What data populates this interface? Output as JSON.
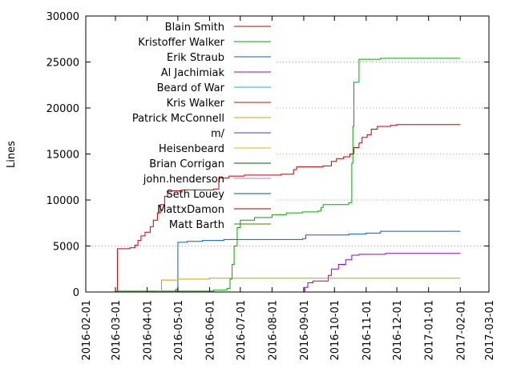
{
  "chart_data": {
    "type": "line",
    "title": "",
    "xlabel": "",
    "ylabel": "Lines",
    "ylim": [
      0,
      30000
    ],
    "yticks": [
      0,
      5000,
      10000,
      15000,
      20000,
      25000,
      30000
    ],
    "xlim": [
      "2016-02-01",
      "2017-03-01"
    ],
    "xticks": [
      "2016-02-01",
      "2016-03-01",
      "2016-04-01",
      "2016-05-01",
      "2016-06-01",
      "2016-07-01",
      "2016-08-01",
      "2016-09-01",
      "2016-10-01",
      "2016-11-01",
      "2016-12-01",
      "2017-01-01",
      "2017-02-01",
      "2017-03-01"
    ],
    "grid": "horizontal dotted",
    "legend_position": "top-left",
    "series": [
      {
        "name": "Blain Smith",
        "color": "#c00000",
        "step": true,
        "points": [
          [
            "2016-03-02",
            0
          ],
          [
            "2016-03-03",
            4700
          ],
          [
            "2016-03-15",
            4800
          ],
          [
            "2016-03-20",
            5100
          ],
          [
            "2016-03-23",
            5600
          ],
          [
            "2016-03-26",
            6100
          ],
          [
            "2016-03-30",
            6500
          ],
          [
            "2016-04-04",
            7100
          ],
          [
            "2016-04-07",
            7800
          ],
          [
            "2016-04-11",
            8600
          ],
          [
            "2016-04-14",
            9500
          ],
          [
            "2016-04-18",
            10400
          ],
          [
            "2016-04-21",
            10900
          ],
          [
            "2016-04-25",
            11000
          ],
          [
            "2016-05-05",
            11100
          ],
          [
            "2016-05-15",
            11100
          ],
          [
            "2016-06-05",
            11200
          ],
          [
            "2016-06-10",
            12400
          ],
          [
            "2016-06-20",
            12600
          ],
          [
            "2016-07-05",
            12700
          ],
          [
            "2016-08-10",
            12800
          ],
          [
            "2016-08-22",
            13300
          ],
          [
            "2016-08-25",
            13600
          ],
          [
            "2016-09-20",
            13700
          ],
          [
            "2016-09-28",
            14200
          ],
          [
            "2016-10-03",
            14500
          ],
          [
            "2016-10-10",
            14700
          ],
          [
            "2016-10-16",
            15000
          ],
          [
            "2016-10-20",
            15700
          ],
          [
            "2016-10-25",
            16200
          ],
          [
            "2016-10-28",
            16800
          ],
          [
            "2016-11-02",
            17100
          ],
          [
            "2016-11-06",
            17700
          ],
          [
            "2016-11-12",
            18000
          ],
          [
            "2016-11-25",
            18100
          ],
          [
            "2016-12-01",
            18200
          ],
          [
            "2017-02-01",
            18200
          ]
        ]
      },
      {
        "name": "Kristoffer Walker",
        "color": "#00aa00",
        "step": true,
        "points": [
          [
            "2016-03-01",
            0
          ],
          [
            "2016-03-02",
            100
          ],
          [
            "2016-06-05",
            200
          ],
          [
            "2016-06-18",
            400
          ],
          [
            "2016-06-21",
            1400
          ],
          [
            "2016-06-23",
            3000
          ],
          [
            "2016-06-25",
            5000
          ],
          [
            "2016-06-28",
            7000
          ],
          [
            "2016-07-01",
            7800
          ],
          [
            "2016-07-15",
            8100
          ],
          [
            "2016-08-01",
            8400
          ],
          [
            "2016-08-15",
            8600
          ],
          [
            "2016-08-31",
            8700
          ],
          [
            "2016-09-15",
            8800
          ],
          [
            "2016-09-18",
            9200
          ],
          [
            "2016-09-20",
            9500
          ],
          [
            "2016-10-15",
            9700
          ],
          [
            "2016-10-18",
            14000
          ],
          [
            "2016-10-19",
            18000
          ],
          [
            "2016-10-20",
            22800
          ],
          [
            "2016-10-25",
            25300
          ],
          [
            "2016-11-15",
            25400
          ],
          [
            "2017-02-01",
            25400
          ]
        ]
      },
      {
        "name": "Erik Straub",
        "color": "#0060c0",
        "step": true,
        "points": [
          [
            "2016-04-28",
            0
          ],
          [
            "2016-04-29",
            300
          ],
          [
            "2016-05-01",
            5400
          ],
          [
            "2016-05-10",
            5500
          ],
          [
            "2016-05-25",
            5600
          ],
          [
            "2016-06-15",
            5700
          ],
          [
            "2016-08-31",
            5800
          ],
          [
            "2016-09-03",
            6200
          ],
          [
            "2016-10-15",
            6300
          ],
          [
            "2016-11-01",
            6400
          ],
          [
            "2016-11-15",
            6600
          ],
          [
            "2017-02-01",
            6600
          ]
        ]
      },
      {
        "name": "Al Jachimiak",
        "color": "#9400d3",
        "step": true,
        "points": [
          [
            "2016-09-01",
            0
          ],
          [
            "2016-09-02",
            500
          ],
          [
            "2016-09-05",
            1000
          ],
          [
            "2016-09-10",
            1200
          ],
          [
            "2016-09-25",
            1800
          ],
          [
            "2016-09-28",
            2500
          ],
          [
            "2016-10-05",
            3000
          ],
          [
            "2016-10-12",
            3500
          ],
          [
            "2016-10-18",
            4000
          ],
          [
            "2016-10-25",
            4100
          ],
          [
            "2016-11-20",
            4200
          ],
          [
            "2017-02-01",
            4200
          ]
        ]
      },
      {
        "name": "Beard of War",
        "color": "#00c0c0",
        "step": true,
        "points": [
          [
            "2016-03-01",
            0
          ],
          [
            "2017-02-01",
            0
          ]
        ]
      },
      {
        "name": "Kris Walker",
        "color": "#a02000",
        "step": true,
        "points": [
          [
            "2016-03-01",
            0
          ],
          [
            "2017-02-01",
            0
          ]
        ]
      },
      {
        "name": "Patrick McConnell",
        "color": "#c8a000",
        "step": true,
        "points": [
          [
            "2016-03-01",
            0
          ],
          [
            "2016-04-12",
            100
          ],
          [
            "2016-04-15",
            1300
          ],
          [
            "2016-05-01",
            1400
          ],
          [
            "2016-06-01",
            1500
          ],
          [
            "2017-02-01",
            1500
          ]
        ]
      },
      {
        "name": "m/",
        "color": "#4040c0",
        "step": true,
        "points": [
          [
            "2016-03-01",
            0
          ],
          [
            "2017-02-01",
            0
          ]
        ]
      },
      {
        "name": "Heisenbeard",
        "color": "#d0c000",
        "step": true,
        "points": [
          [
            "2016-03-01",
            0
          ],
          [
            "2017-02-01",
            0
          ]
        ]
      },
      {
        "name": "Brian Corrigan",
        "color": "#006000",
        "step": true,
        "points": [
          [
            "2016-03-01",
            0
          ],
          [
            "2017-02-01",
            0
          ]
        ]
      },
      {
        "name": "john.henderson",
        "color": "#c080c0",
        "step": true,
        "points": [
          [
            "2016-03-01",
            0
          ],
          [
            "2017-02-01",
            0
          ]
        ]
      },
      {
        "name": "Seth Louey",
        "color": "#005090",
        "step": true,
        "points": [
          [
            "2016-03-01",
            0
          ],
          [
            "2017-02-01",
            0
          ]
        ]
      },
      {
        "name": "MattxDamon",
        "color": "#a00000",
        "step": true,
        "points": [
          [
            "2016-03-01",
            0
          ],
          [
            "2017-02-01",
            0
          ]
        ]
      },
      {
        "name": "Matt Barth",
        "color": "#408000",
        "step": true,
        "points": [
          [
            "2016-03-01",
            0
          ],
          [
            "2017-02-01",
            0
          ]
        ]
      }
    ]
  }
}
